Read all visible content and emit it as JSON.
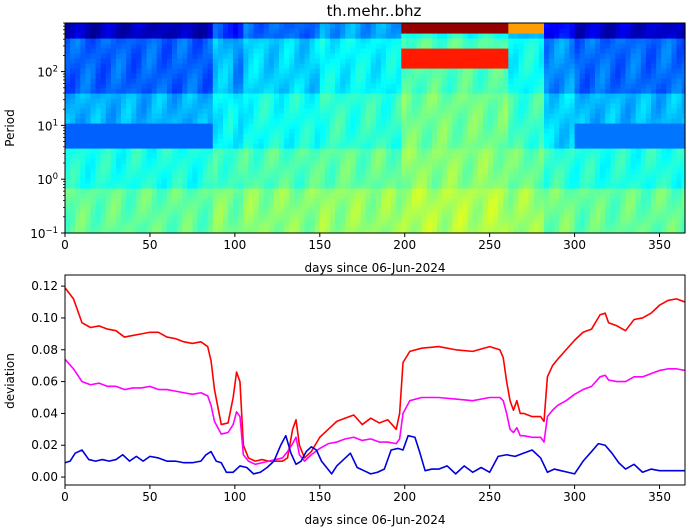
{
  "title": "th.mehr..bhz",
  "chart_data": [
    {
      "type": "heatmap",
      "title": "th.mehr..bhz",
      "xlabel": "days since 06-Jun-2024",
      "ylabel": "Period",
      "xlim": [
        0,
        365
      ],
      "ylim": [
        0.1,
        800
      ],
      "yscale": "log",
      "colormap": "jet",
      "x_ticks": [
        0,
        50,
        100,
        150,
        200,
        250,
        300,
        350
      ],
      "y_ticks": [
        {
          "value": 0.1,
          "base": "10",
          "exp": "−1"
        },
        {
          "value": 1,
          "base": "10",
          "exp": "0"
        },
        {
          "value": 10,
          "base": "10",
          "exp": "1"
        },
        {
          "value": 100,
          "base": "10",
          "exp": "2"
        }
      ],
      "day_bands": [
        {
          "from": 0,
          "to": 86,
          "level": 0.0
        },
        {
          "from": 86,
          "to": 100,
          "level": 0.6
        },
        {
          "from": 100,
          "to": 105,
          "level": 0.35
        },
        {
          "from": 105,
          "to": 150,
          "level": 0.75
        },
        {
          "from": 150,
          "to": 198,
          "level": 1.0
        },
        {
          "from": 198,
          "to": 262,
          "level": 1.55
        },
        {
          "from": 262,
          "to": 283,
          "level": 1.1
        },
        {
          "from": 283,
          "to": 300,
          "level": 0.3
        },
        {
          "from": 300,
          "to": 365,
          "level": 0.05
        }
      ],
      "features": [
        {
          "name": "red band",
          "days": [
            198,
            260
          ],
          "period": [
            500,
            800
          ],
          "value": 0.98
        },
        {
          "name": "orange band",
          "days": [
            198,
            262
          ],
          "period": [
            120,
            300
          ],
          "value": 0.85
        },
        {
          "name": "yellow patch",
          "days": [
            262,
            283
          ],
          "period": [
            500,
            800
          ],
          "value": 0.72
        },
        {
          "name": "microseism low",
          "days": [
            0,
            86
          ],
          "period": [
            4,
            12
          ],
          "value": 0.22
        },
        {
          "name": "microseism low",
          "days": [
            300,
            365
          ],
          "period": [
            4,
            12
          ],
          "value": 0.24
        }
      ]
    },
    {
      "type": "line",
      "xlabel": "days since 06-Jun-2024",
      "ylabel": "deviation",
      "xlim": [
        0,
        365
      ],
      "ylim": [
        -0.005,
        0.127
      ],
      "x_ticks": [
        0,
        50,
        100,
        150,
        200,
        250,
        300,
        350
      ],
      "y_ticks": [
        "0.00",
        "0.02",
        "0.04",
        "0.06",
        "0.08",
        "0.10",
        "0.12"
      ],
      "series": [
        {
          "color": "#ff0000",
          "x": [
            0,
            5,
            10,
            15,
            20,
            25,
            30,
            35,
            40,
            45,
            50,
            55,
            60,
            65,
            70,
            75,
            80,
            84,
            86,
            88,
            92,
            96,
            99,
            101,
            103,
            105,
            108,
            112,
            116,
            120,
            124,
            128,
            131,
            134,
            136,
            138,
            141,
            145,
            150,
            155,
            160,
            165,
            170,
            175,
            180,
            185,
            190,
            195,
            197,
            199,
            203,
            210,
            220,
            230,
            240,
            250,
            256,
            258,
            260,
            262,
            264,
            266,
            268,
            270,
            275,
            280,
            282,
            284,
            287,
            290,
            295,
            300,
            305,
            310,
            315,
            318,
            320,
            325,
            330,
            335,
            340,
            345,
            350,
            355,
            360,
            365
          ],
          "values": [
            0.119,
            0.112,
            0.097,
            0.094,
            0.095,
            0.093,
            0.092,
            0.088,
            0.089,
            0.09,
            0.091,
            0.091,
            0.088,
            0.087,
            0.085,
            0.084,
            0.085,
            0.082,
            0.073,
            0.055,
            0.033,
            0.034,
            0.05,
            0.066,
            0.06,
            0.02,
            0.012,
            0.01,
            0.011,
            0.01,
            0.01,
            0.01,
            0.012,
            0.03,
            0.036,
            0.02,
            0.012,
            0.016,
            0.025,
            0.03,
            0.035,
            0.037,
            0.039,
            0.033,
            0.037,
            0.034,
            0.036,
            0.03,
            0.04,
            0.072,
            0.079,
            0.081,
            0.082,
            0.08,
            0.079,
            0.082,
            0.08,
            0.075,
            0.06,
            0.048,
            0.042,
            0.048,
            0.04,
            0.04,
            0.038,
            0.038,
            0.035,
            0.063,
            0.07,
            0.074,
            0.08,
            0.086,
            0.091,
            0.093,
            0.102,
            0.103,
            0.097,
            0.095,
            0.092,
            0.099,
            0.1,
            0.103,
            0.108,
            0.111,
            0.112,
            0.11
          ]
        },
        {
          "color": "#ff00ff",
          "x": [
            0,
            5,
            10,
            15,
            20,
            25,
            30,
            35,
            40,
            45,
            50,
            55,
            60,
            65,
            70,
            75,
            80,
            84,
            86,
            88,
            92,
            96,
            99,
            101,
            103,
            105,
            108,
            112,
            116,
            120,
            124,
            128,
            131,
            134,
            136,
            138,
            141,
            145,
            150,
            155,
            160,
            165,
            170,
            175,
            180,
            185,
            190,
            195,
            197,
            199,
            203,
            210,
            220,
            230,
            240,
            250,
            256,
            258,
            260,
            262,
            264,
            266,
            268,
            270,
            275,
            280,
            282,
            284,
            287,
            290,
            295,
            300,
            305,
            310,
            315,
            318,
            320,
            325,
            330,
            335,
            340,
            345,
            350,
            355,
            360,
            365
          ],
          "values": [
            0.074,
            0.068,
            0.06,
            0.058,
            0.059,
            0.057,
            0.057,
            0.055,
            0.056,
            0.056,
            0.057,
            0.055,
            0.055,
            0.054,
            0.053,
            0.052,
            0.053,
            0.051,
            0.045,
            0.035,
            0.027,
            0.028,
            0.033,
            0.041,
            0.038,
            0.014,
            0.01,
            0.008,
            0.009,
            0.01,
            0.011,
            0.012,
            0.016,
            0.021,
            0.025,
            0.014,
            0.01,
            0.014,
            0.018,
            0.021,
            0.022,
            0.024,
            0.025,
            0.023,
            0.024,
            0.022,
            0.022,
            0.021,
            0.024,
            0.04,
            0.048,
            0.05,
            0.05,
            0.049,
            0.048,
            0.05,
            0.05,
            0.048,
            0.04,
            0.03,
            0.028,
            0.031,
            0.026,
            0.026,
            0.025,
            0.025,
            0.022,
            0.038,
            0.042,
            0.045,
            0.048,
            0.052,
            0.055,
            0.057,
            0.063,
            0.064,
            0.061,
            0.06,
            0.06,
            0.063,
            0.063,
            0.065,
            0.067,
            0.068,
            0.068,
            0.067
          ]
        },
        {
          "color": "#0000dd",
          "x": [
            0,
            3,
            6,
            10,
            14,
            18,
            22,
            26,
            30,
            34,
            38,
            42,
            46,
            50,
            55,
            60,
            65,
            70,
            75,
            80,
            83,
            86,
            89,
            92,
            95,
            99,
            103,
            107,
            111,
            115,
            119,
            123,
            127,
            130,
            133,
            136,
            139,
            142,
            145,
            148,
            151,
            154,
            157,
            160,
            164,
            168,
            172,
            176,
            180,
            184,
            188,
            192,
            196,
            199,
            202,
            206,
            209,
            212,
            216,
            220,
            225,
            230,
            235,
            240,
            245,
            250,
            255,
            260,
            265,
            270,
            275,
            280,
            284,
            288,
            292,
            296,
            300,
            305,
            310,
            314,
            318,
            322,
            326,
            330,
            335,
            340,
            345,
            350,
            355,
            360,
            365
          ],
          "values": [
            0.009,
            0.01,
            0.015,
            0.017,
            0.011,
            0.01,
            0.011,
            0.01,
            0.011,
            0.014,
            0.01,
            0.013,
            0.01,
            0.013,
            0.012,
            0.01,
            0.01,
            0.009,
            0.009,
            0.01,
            0.014,
            0.016,
            0.01,
            0.009,
            0.003,
            0.003,
            0.007,
            0.006,
            0.002,
            0.003,
            0.006,
            0.01,
            0.02,
            0.026,
            0.015,
            0.008,
            0.01,
            0.016,
            0.019,
            0.017,
            0.01,
            0.006,
            0.002,
            0.007,
            0.011,
            0.015,
            0.006,
            0.004,
            0.002,
            0.003,
            0.005,
            0.017,
            0.018,
            0.017,
            0.026,
            0.025,
            0.015,
            0.004,
            0.005,
            0.005,
            0.007,
            0.002,
            0.007,
            0.003,
            0.006,
            0.003,
            0.013,
            0.014,
            0.013,
            0.015,
            0.017,
            0.012,
            0.003,
            0.005,
            0.004,
            0.003,
            0.002,
            0.01,
            0.016,
            0.021,
            0.02,
            0.015,
            0.009,
            0.005,
            0.008,
            0.003,
            0.005,
            0.004,
            0.004,
            0.004,
            0.004
          ]
        }
      ]
    }
  ]
}
